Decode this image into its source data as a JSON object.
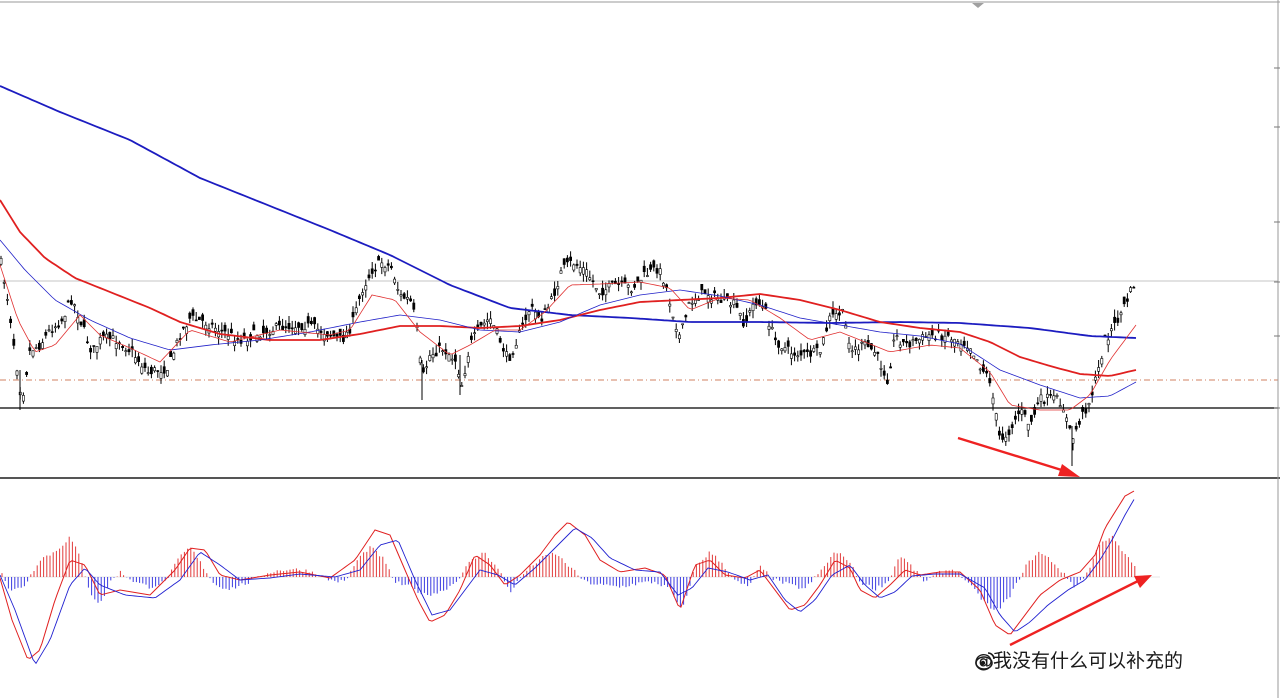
{
  "watermark": {
    "text": "@我没有什么可以补充的",
    "icon": "weibo-logo-icon"
  },
  "colors": {
    "candle": "#000000",
    "ma_fast": "#e03030",
    "ma_slow_blue": "#2020c8",
    "ma_mid_red": "#e02020",
    "ma_long_blue": "#1c1cc0",
    "hist_pos": "#e23a3a",
    "hist_neg": "#3a3ae0",
    "macd_red": "#e02020",
    "macd_blue": "#2020d0",
    "annotation_arrow": "#ee2222",
    "support_line": "#000000",
    "dashed_level": "#d08060",
    "grey_level": "#b0b0b0"
  },
  "chart_data": [
    {
      "type": "candlestick",
      "panel": "price",
      "overlays": [
        "moving-average-fast-thin-red",
        "moving-average-fast-thin-blue",
        "moving-average-mid-red",
        "moving-average-long-blue"
      ],
      "horizontal_levels": [
        "solid-black-support",
        "dashed-orange",
        "grey-thin"
      ],
      "annotations": [
        "red-arrow-down-right-lower-lows"
      ],
      "grid": false,
      "axis_labels_visible": false
    },
    {
      "type": "bar",
      "panel": "oscillator",
      "series_lines": [
        "macd-red",
        "signal-blue"
      ],
      "annotations": [
        "red-arrow-up-right-higher-lows"
      ],
      "grid": false,
      "axis_labels_visible": false
    }
  ]
}
